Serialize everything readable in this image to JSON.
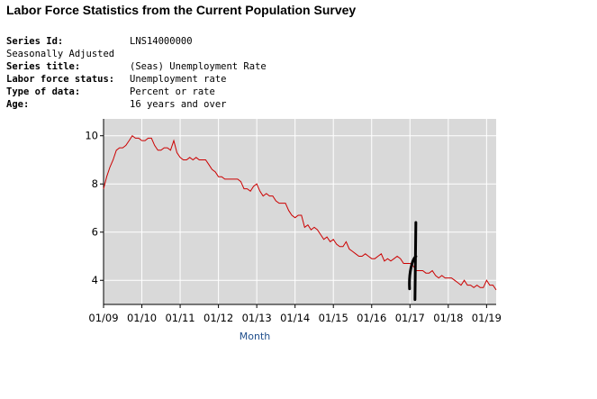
{
  "page": {
    "title": "Labor Force Statistics from the Current Population Survey"
  },
  "series_info": {
    "series_id_label": "Series Id:",
    "series_id_value": "LNS14000000",
    "seasonal": "Seasonally Adjusted",
    "series_title_label": "Series title:",
    "series_title_value": "(Seas) Unemployment Rate",
    "lf_status_label": "Labor force status:",
    "lf_status_value": "Unemployment rate",
    "data_type_label": "Type of data:",
    "data_type_value": "Percent or rate",
    "age_label": "Age:",
    "age_value": "16 years and over"
  },
  "colors": {
    "plot_background": "#d9d9d9",
    "grid": "#ffffff",
    "line": "#cc0000",
    "annotation": "#000000",
    "axis_label": "#1f4e8c"
  },
  "chart_data": {
    "type": "line",
    "title": "",
    "xlabel": "Month",
    "ylabel": "",
    "ylim": [
      3,
      10.7
    ],
    "xlim": [
      0,
      123
    ],
    "x_start": "01/09",
    "x_ticks": [
      {
        "index": 0,
        "label": "01/09"
      },
      {
        "index": 12,
        "label": "01/10"
      },
      {
        "index": 24,
        "label": "01/11"
      },
      {
        "index": 36,
        "label": "01/12"
      },
      {
        "index": 48,
        "label": "01/13"
      },
      {
        "index": 60,
        "label": "01/14"
      },
      {
        "index": 72,
        "label": "01/15"
      },
      {
        "index": 84,
        "label": "01/16"
      },
      {
        "index": 96,
        "label": "01/17"
      },
      {
        "index": 108,
        "label": "01/18"
      },
      {
        "index": 120,
        "label": "01/19"
      }
    ],
    "y_ticks": [
      4,
      6,
      8,
      10
    ],
    "grid": true,
    "series": [
      {
        "name": "Unemployment Rate",
        "values": [
          7.8,
          8.3,
          8.7,
          9.0,
          9.4,
          9.5,
          9.5,
          9.6,
          9.8,
          10.0,
          9.9,
          9.9,
          9.8,
          9.8,
          9.9,
          9.9,
          9.6,
          9.4,
          9.4,
          9.5,
          9.5,
          9.4,
          9.8,
          9.3,
          9.1,
          9.0,
          9.0,
          9.1,
          9.0,
          9.1,
          9.0,
          9.0,
          9.0,
          8.8,
          8.6,
          8.5,
          8.3,
          8.3,
          8.2,
          8.2,
          8.2,
          8.2,
          8.2,
          8.1,
          7.8,
          7.8,
          7.7,
          7.9,
          8.0,
          7.7,
          7.5,
          7.6,
          7.5,
          7.5,
          7.3,
          7.2,
          7.2,
          7.2,
          6.9,
          6.7,
          6.6,
          6.7,
          6.7,
          6.2,
          6.3,
          6.1,
          6.2,
          6.1,
          5.9,
          5.7,
          5.8,
          5.6,
          5.7,
          5.5,
          5.4,
          5.4,
          5.6,
          5.3,
          5.2,
          5.1,
          5.0,
          5.0,
          5.1,
          5.0,
          4.9,
          4.9,
          5.0,
          5.1,
          4.8,
          4.9,
          4.8,
          4.9,
          5.0,
          4.9,
          4.7,
          4.7,
          4.7,
          4.6,
          4.4,
          4.4,
          4.4,
          4.3,
          4.3,
          4.4,
          4.2,
          4.1,
          4.2,
          4.1,
          4.1,
          4.1,
          4.0,
          3.9,
          3.8,
          4.0,
          3.8,
          3.8,
          3.7,
          3.8,
          3.7,
          3.7,
          4.0,
          3.8,
          3.8,
          3.6
        ]
      }
    ],
    "annotations": [
      {
        "type": "hand-drawn-mark",
        "near_index": 97,
        "y_range": [
          3.2,
          6.4
        ]
      }
    ]
  }
}
